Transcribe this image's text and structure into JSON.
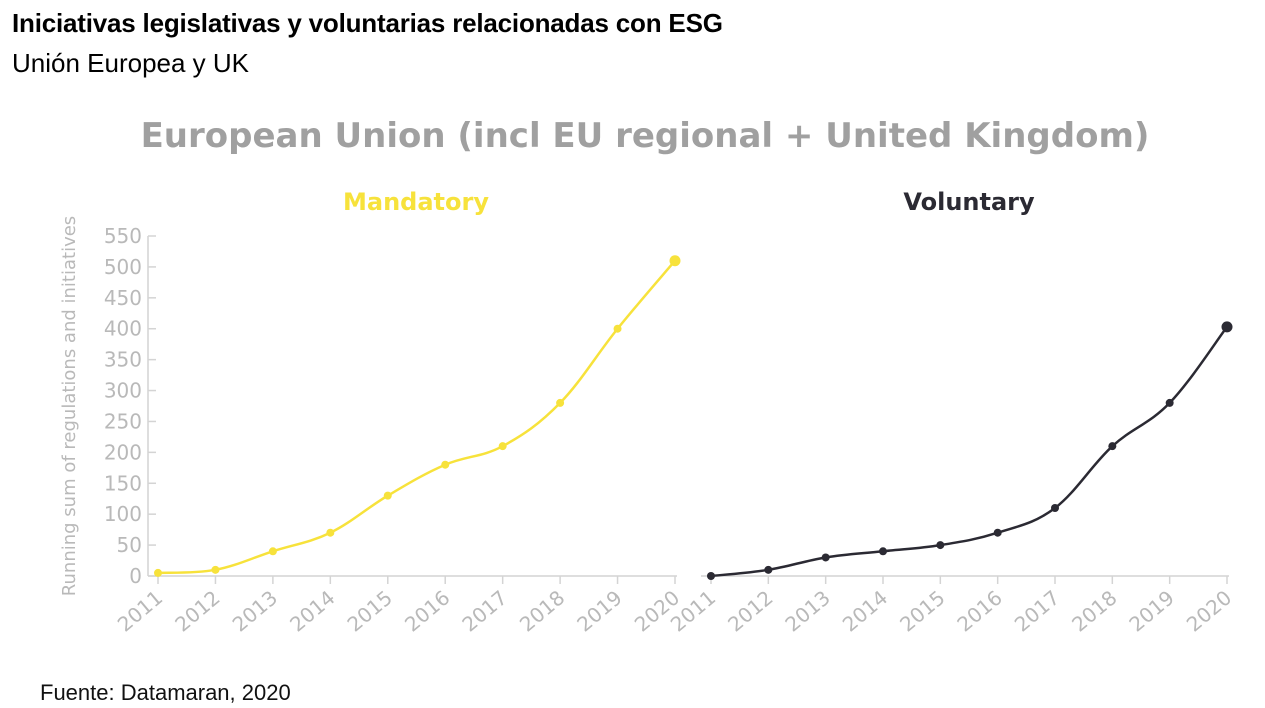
{
  "header": {
    "title": "Iniciativas legislativas y voluntarias relacionadas con ESG",
    "subtitle": "Unión Europea y UK"
  },
  "footer": {
    "source": "Fuente: Datamaran, 2020"
  },
  "chart_data": {
    "type": "line",
    "title": "European Union (incl EU regional + United Kingdom)",
    "ylabel": "Running sum of regulations and initiatives",
    "ylim": [
      0,
      550
    ],
    "yticks": [
      0,
      50,
      100,
      150,
      200,
      250,
      300,
      350,
      400,
      450,
      500,
      550
    ],
    "grid": false,
    "panels": [
      {
        "name": "Mandatory",
        "color": "#f7e23b",
        "x": [
          "2011",
          "2012",
          "2013",
          "2014",
          "2015",
          "2016",
          "2017",
          "2018",
          "2019",
          "2020"
        ],
        "values": [
          5,
          10,
          40,
          70,
          130,
          180,
          210,
          280,
          400,
          510
        ]
      },
      {
        "name": "Voluntary",
        "color": "#2b2a33",
        "x": [
          "2011",
          "2012",
          "2013",
          "2014",
          "2015",
          "2016",
          "2017",
          "2018",
          "2019",
          "2020"
        ],
        "values": [
          0,
          10,
          30,
          40,
          50,
          70,
          110,
          210,
          280,
          403
        ]
      }
    ]
  }
}
